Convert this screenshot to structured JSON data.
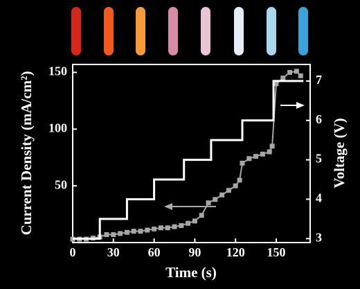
{
  "chart_data": {
    "type": "line",
    "xlabel": "Time (s)",
    "ylabel": "Current Density (mA/cm²)",
    "y2label": "Voltage (V)",
    "xlim": [
      0,
      175
    ],
    "xticks": [
      0,
      30,
      60,
      90,
      120,
      150
    ],
    "ylim": [
      0,
      157
    ],
    "yticks": [
      50,
      100,
      150
    ],
    "y2lim": [
      2.9,
      7.42
    ],
    "y2ticks": [
      3,
      4,
      5,
      6,
      7
    ],
    "series": [
      {
        "name": "Current Density",
        "color": "#a6a6a6",
        "marker": "square",
        "axis": "y",
        "x": [
          0,
          5,
          10,
          15,
          20,
          25,
          30,
          35,
          40,
          45,
          50,
          55,
          60,
          65,
          70,
          75,
          80,
          85,
          90,
          95,
          100,
          105,
          110,
          115,
          120,
          123,
          125,
          130,
          135,
          140,
          145,
          147,
          150,
          155,
          160,
          165,
          168
        ],
        "values": [
          3,
          3,
          3,
          4,
          5,
          7,
          7,
          8,
          9,
          10,
          10,
          11,
          12,
          13,
          13,
          14,
          15,
          17,
          19,
          24,
          35,
          38,
          42,
          46,
          50,
          55,
          70,
          74,
          76,
          78,
          80,
          85,
          140,
          145,
          150,
          151,
          147
        ]
      },
      {
        "name": "Voltage",
        "color": "#ffffff",
        "marker": "none",
        "axis": "y2",
        "drawstyle": "steps-post",
        "x": [
          0,
          20,
          40,
          60,
          82,
          102,
          125,
          148,
          170
        ],
        "values": [
          3,
          3.5,
          4,
          4.5,
          5,
          5.5,
          6,
          7,
          7
        ]
      }
    ]
  }
}
